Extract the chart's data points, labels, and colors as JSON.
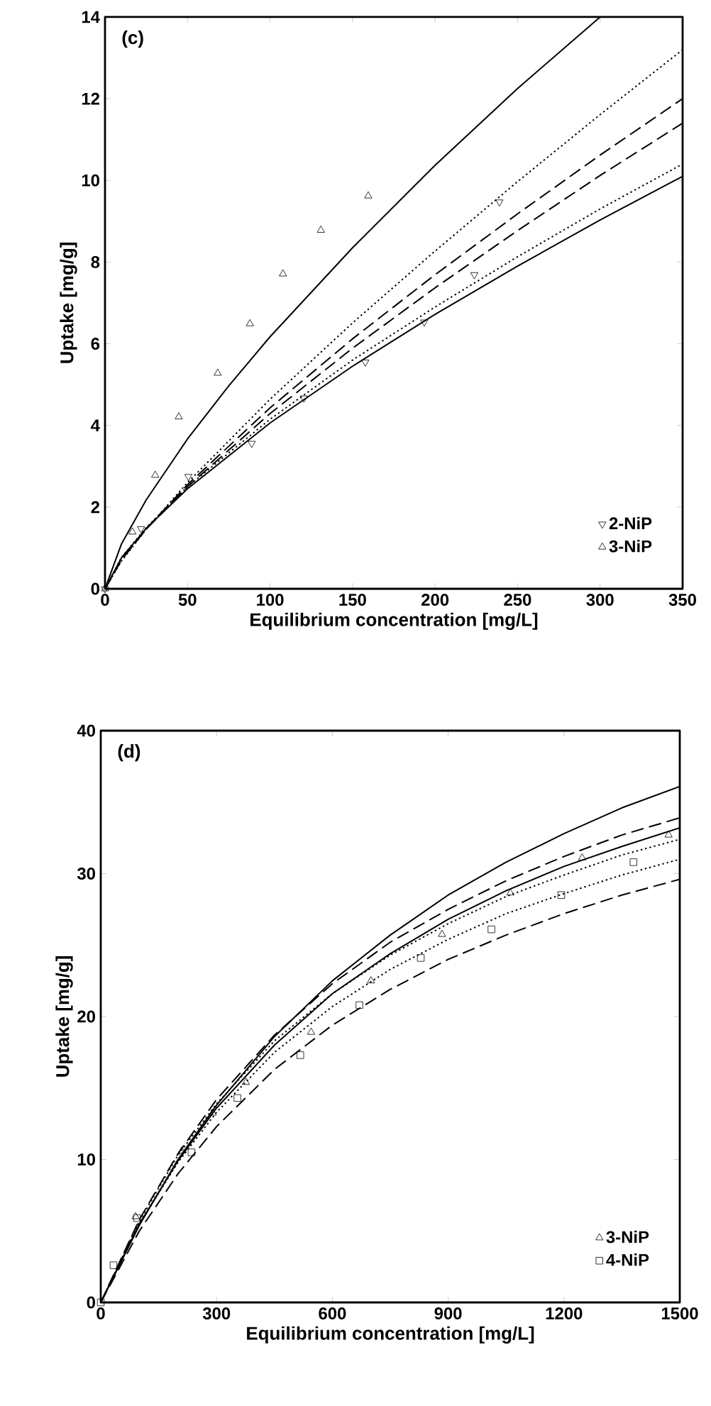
{
  "chart_data": [
    {
      "type": "scatter",
      "title": "(c)",
      "xlabel": "Equilibrium concentration [mg/L]",
      "ylabel": "Uptake [mg/g]",
      "xlim": [
        0,
        350
      ],
      "ylim": [
        0,
        14
      ],
      "xticks": [
        0,
        50,
        100,
        150,
        200,
        250,
        300,
        350
      ],
      "yticks": [
        0,
        2,
        4,
        6,
        8,
        10,
        12,
        14
      ],
      "legend": "bottom right",
      "grid": false,
      "series": [
        {
          "name": "2-NiP",
          "type": "scatter",
          "marker": "triangle-down",
          "color": "#000000",
          "x": [
            0,
            21.8,
            50.5,
            88.9,
            120.5,
            157.7,
            193.4,
            223.8,
            239
          ],
          "values": [
            0,
            1.47,
            2.75,
            3.56,
            4.67,
            5.55,
            6.53,
            7.69,
            9.47
          ]
        },
        {
          "name": "3-NiP",
          "type": "scatter",
          "marker": "triangle",
          "color": "#000000",
          "x": [
            0,
            16.6,
            30.4,
            44.7,
            68.3,
            87.8,
            107.8,
            130.8,
            159.5
          ],
          "values": [
            0,
            1.39,
            2.78,
            4.21,
            5.28,
            6.49,
            7.71,
            8.78,
            9.62
          ]
        },
        {
          "type": "line",
          "line_style": "solid",
          "color": "#000000",
          "x": [
            0,
            10,
            25,
            50,
            75,
            100,
            150,
            200,
            250,
            300
          ],
          "values": [
            0,
            1.1,
            2.18,
            3.67,
            4.97,
            6.17,
            8.35,
            10.37,
            12.25,
            14.0
          ]
        },
        {
          "type": "line",
          "line_style": "dotted",
          "color": "#000000",
          "x": [
            0,
            10,
            25,
            50,
            100,
            150,
            200,
            250,
            300,
            350
          ],
          "values": [
            0,
            0.68,
            1.46,
            2.6,
            4.64,
            6.51,
            8.27,
            9.97,
            11.61,
            13.2
          ]
        },
        {
          "type": "line",
          "line_style": "dashed",
          "color": "#000000",
          "x": [
            0,
            10,
            25,
            50,
            100,
            150,
            200,
            250,
            300,
            350
          ],
          "values": [
            0,
            0.71,
            1.47,
            2.55,
            4.43,
            6.12,
            7.69,
            9.18,
            10.62,
            12.0
          ]
        },
        {
          "type": "line",
          "line_style": "dashed",
          "color": "#000000",
          "x": [
            0,
            10,
            25,
            50,
            100,
            150,
            200,
            250,
            300,
            350
          ],
          "values": [
            0,
            0.71,
            1.46,
            2.5,
            4.29,
            5.89,
            7.37,
            8.77,
            10.12,
            11.4
          ]
        },
        {
          "type": "line",
          "line_style": "dotted",
          "color": "#000000",
          "x": [
            0,
            10,
            25,
            50,
            100,
            150,
            200,
            250,
            300,
            350
          ],
          "values": [
            0,
            0.77,
            1.5,
            2.5,
            4.15,
            5.6,
            6.9,
            8.13,
            9.3,
            10.4
          ]
        },
        {
          "type": "line",
          "line_style": "solid",
          "color": "#000000",
          "x": [
            0,
            10,
            25,
            50,
            100,
            150,
            200,
            250,
            300,
            350
          ],
          "values": [
            0,
            0.76,
            1.48,
            2.45,
            4.06,
            5.45,
            6.72,
            7.9,
            9.03,
            10.1
          ]
        }
      ]
    },
    {
      "type": "scatter",
      "title": "(d)",
      "xlabel": "Equilibrium concentration [mg/L]",
      "ylabel": "Uptake [mg/g]",
      "xlim": [
        0,
        1500
      ],
      "ylim": [
        0,
        40
      ],
      "xticks": [
        0,
        300,
        600,
        900,
        1200,
        1500
      ],
      "yticks": [
        0,
        10,
        20,
        30,
        40
      ],
      "legend": "bottom right",
      "grid": false,
      "series": [
        {
          "name": "3-NiP",
          "type": "scatter",
          "marker": "triangle",
          "color": "#000000",
          "x": [
            90,
            210,
            290,
            376,
            545,
            700,
            884,
            1061,
            1247,
            1471
          ],
          "values": [
            6.0,
            10.6,
            13.25,
            15.4,
            18.9,
            22.5,
            25.75,
            28.65,
            31.1,
            32.7
          ]
        },
        {
          "name": "4-NiP",
          "type": "scatter",
          "marker": "square",
          "color": "#000000",
          "x": [
            0,
            33,
            94,
            235,
            354,
            517,
            670,
            829,
            1012,
            1193,
            1380
          ],
          "values": [
            0,
            2.6,
            5.9,
            10.5,
            14.3,
            17.3,
            20.8,
            24.1,
            26.1,
            28.5,
            30.8
          ]
        },
        {
          "type": "line",
          "line_style": "solid",
          "color": "#000000",
          "x": [
            0,
            100,
            200,
            300,
            450,
            600,
            750,
            900,
            1050,
            1200,
            1350,
            1500
          ],
          "values": [
            0,
            5.4,
            10.0,
            13.8,
            18.6,
            22.5,
            25.7,
            28.5,
            30.8,
            32.8,
            34.6,
            36.1
          ]
        },
        {
          "type": "line",
          "line_style": "dashed",
          "color": "#000000",
          "x": [
            0,
            100,
            200,
            300,
            450,
            600,
            750,
            900,
            1050,
            1200,
            1350,
            1500
          ],
          "values": [
            0,
            5.8,
            10.4,
            14.2,
            18.7,
            22.3,
            25.2,
            27.5,
            29.5,
            31.2,
            32.7,
            33.9
          ]
        },
        {
          "type": "line",
          "line_style": "solid",
          "color": "#000000",
          "x": [
            0,
            100,
            200,
            300,
            450,
            600,
            750,
            900,
            1050,
            1200,
            1350,
            1500
          ],
          "values": [
            0,
            5.5,
            9.9,
            13.6,
            18.0,
            21.6,
            24.4,
            26.8,
            28.8,
            30.5,
            31.9,
            33.2
          ]
        },
        {
          "type": "line",
          "line_style": "dotted",
          "color": "#000000",
          "x": [
            0,
            100,
            200,
            300,
            450,
            600,
            750,
            900,
            1050,
            1200,
            1350,
            1500
          ],
          "values": [
            0,
            5.7,
            10.3,
            13.9,
            18.3,
            21.6,
            24.3,
            26.5,
            28.4,
            29.9,
            31.3,
            32.4
          ]
        },
        {
          "type": "line",
          "line_style": "dotted",
          "color": "#000000",
          "x": [
            0,
            100,
            200,
            300,
            450,
            600,
            750,
            900,
            1050,
            1200,
            1350,
            1500
          ],
          "values": [
            0,
            5.5,
            9.8,
            13.3,
            17.5,
            20.7,
            23.3,
            25.4,
            27.2,
            28.6,
            29.9,
            31.0
          ]
        },
        {
          "type": "line",
          "line_style": "dashed",
          "color": "#000000",
          "x": [
            0,
            100,
            200,
            300,
            450,
            600,
            750,
            900,
            1050,
            1200,
            1350,
            1500
          ],
          "values": [
            0,
            5.0,
            9.0,
            12.3,
            16.3,
            19.4,
            21.9,
            24.0,
            25.7,
            27.2,
            28.5,
            29.6
          ]
        }
      ]
    }
  ]
}
